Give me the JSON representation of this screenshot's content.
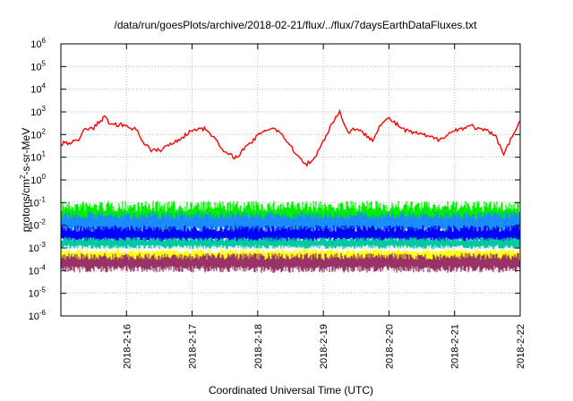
{
  "chart_data": {
    "type": "line",
    "title": "/data/run/goesPlots/archive/2018-02-21/flux/../flux/7daysEarthDataFluxes.txt",
    "xlabel": "Coordinated Universal Time (UTC)",
    "ylabel": {
      "base": "protons/cm",
      "sup": "2",
      "rest": "-s-sr-MeV"
    },
    "yscale": "log",
    "xlim": [
      "2018-02-15T00:00",
      "2018-02-22T00:00"
    ],
    "ylim": [
      1e-06,
      1000000.0
    ],
    "grid": true,
    "legend": "none",
    "xticks": [
      "2018-2-16",
      "2018-2-17",
      "2018-2-18",
      "2018-2-19",
      "2018-2-20",
      "2018-2-21",
      "2018-2-22"
    ],
    "yticks": [
      {
        "base": "10",
        "exp": "-6"
      },
      {
        "base": "10",
        "exp": "-5"
      },
      {
        "base": "10",
        "exp": "-4"
      },
      {
        "base": "10",
        "exp": "-3"
      },
      {
        "base": "10",
        "exp": "-2"
      },
      {
        "base": "10",
        "exp": "-1"
      },
      {
        "base": "10",
        "exp": "0"
      },
      {
        "base": "10",
        "exp": "1"
      },
      {
        "base": "10",
        "exp": "2"
      },
      {
        "base": "10",
        "exp": "3"
      },
      {
        "base": "10",
        "exp": "4"
      },
      {
        "base": "10",
        "exp": "5"
      },
      {
        "base": "10",
        "exp": "6"
      }
    ],
    "series": [
      {
        "color": "#ff0000",
        "kind": "line",
        "x": [
          "2018-02-15T00:00",
          "2018-02-15T06:00",
          "2018-02-15T09:00",
          "2018-02-15T12:00",
          "2018-02-15T16:00",
          "2018-02-15T18:00",
          "2018-02-16T00:00",
          "2018-02-16T04:00",
          "2018-02-16T06:00",
          "2018-02-16T09:00",
          "2018-02-16T12:00",
          "2018-02-16T18:00",
          "2018-02-17T00:00",
          "2018-02-17T03:00",
          "2018-02-17T06:00",
          "2018-02-17T09:00",
          "2018-02-17T12:00",
          "2018-02-17T16:00",
          "2018-02-17T22:00",
          "2018-02-18T02:00",
          "2018-02-18T06:00",
          "2018-02-18T09:00",
          "2018-02-18T12:00",
          "2018-02-18T15:00",
          "2018-02-18T18:00",
          "2018-02-18T21:00",
          "2018-02-19T00:00",
          "2018-02-19T03:00",
          "2018-02-19T06:00",
          "2018-02-19T09:00",
          "2018-02-19T12:00",
          "2018-02-19T15:00",
          "2018-02-19T18:00",
          "2018-02-19T21:00",
          "2018-02-20T00:00",
          "2018-02-20T06:00",
          "2018-02-20T12:00",
          "2018-02-20T18:00",
          "2018-02-21T00:00",
          "2018-02-21T06:00",
          "2018-02-21T10:00",
          "2018-02-21T12:00",
          "2018-02-21T15:00",
          "2018-02-21T18:00",
          "2018-02-22T00:00"
        ],
        "values": [
          40,
          50,
          180,
          200,
          600,
          300,
          250,
          150,
          50,
          20,
          20,
          50,
          150,
          200,
          150,
          50,
          15,
          10,
          50,
          150,
          200,
          100,
          30,
          10,
          5,
          10,
          50,
          300,
          1000,
          120,
          200,
          100,
          60,
          300,
          500,
          150,
          100,
          60,
          150,
          250,
          150,
          150,
          80,
          15,
          400
        ]
      },
      {
        "color": "#00ee00",
        "kind": "band",
        "low": 0.005,
        "high": 0.12
      },
      {
        "color": "#1a8cff",
        "kind": "band",
        "low": 0.004,
        "high": 0.04
      },
      {
        "color": "#0000ff",
        "kind": "band",
        "low": 0.0015,
        "high": 0.01
      },
      {
        "color": "#00c8a0",
        "kind": "band",
        "low": 0.0009,
        "high": 0.003
      },
      {
        "color": "#ffff00",
        "kind": "band",
        "low": 0.0002,
        "high": 0.0009
      },
      {
        "color": "#993366",
        "kind": "band",
        "low": 8e-05,
        "high": 0.0006
      }
    ]
  }
}
